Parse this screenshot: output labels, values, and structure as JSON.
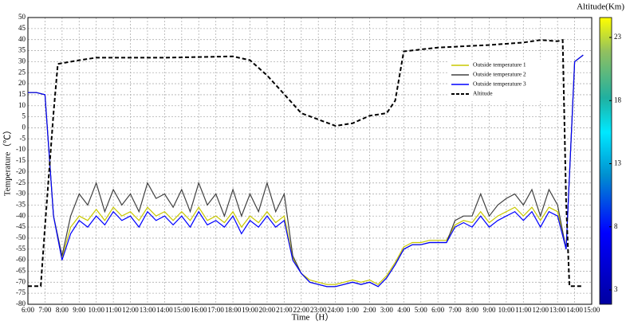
{
  "chart_data": {
    "type": "line",
    "xlabel": "Time（H）",
    "ylabel": "Temperature（℃）",
    "y2label": "Altitude(Km)",
    "x": [
      0,
      0.5,
      1,
      1.5,
      2,
      2.5,
      3,
      3.5,
      4,
      4.5,
      5,
      5.5,
      6,
      6.5,
      7,
      7.5,
      8,
      8.5,
      9,
      9.5,
      10,
      10.5,
      11,
      11.5,
      12,
      12.5,
      13,
      13.5,
      14,
      14.5,
      15,
      15.5,
      16,
      16.5,
      17,
      17.5,
      18,
      18.5,
      19,
      19.5,
      20,
      20.5,
      21,
      21.5,
      22,
      22.5,
      23,
      23.5,
      24,
      24.5,
      25,
      25.5,
      26,
      26.5,
      27,
      27.5,
      28,
      28.5,
      29,
      29.5,
      30,
      30.5,
      31,
      31.5,
      32,
      32.5
    ],
    "xlim": [
      0,
      33
    ],
    "xticks": [
      {
        "value": 0,
        "label": "6:00"
      },
      {
        "value": 1,
        "label": "7:00"
      },
      {
        "value": 2,
        "label": "8:00"
      },
      {
        "value": 3,
        "label": "9:00"
      },
      {
        "value": 4,
        "label": "10:00"
      },
      {
        "value": 5,
        "label": "11:00"
      },
      {
        "value": 6,
        "label": "12:00"
      },
      {
        "value": 7,
        "label": "13:00"
      },
      {
        "value": 8,
        "label": "14:00"
      },
      {
        "value": 9,
        "label": "15:00"
      },
      {
        "value": 10,
        "label": "16:00"
      },
      {
        "value": 11,
        "label": "17:00"
      },
      {
        "value": 12,
        "label": "18:00"
      },
      {
        "value": 13,
        "label": "19:00"
      },
      {
        "value": 14,
        "label": "20:00"
      },
      {
        "value": 15,
        "label": "21:00"
      },
      {
        "value": 16,
        "label": "22:00"
      },
      {
        "value": 17,
        "label": "23:00"
      },
      {
        "value": 18,
        "label": "24:00"
      },
      {
        "value": 19,
        "label": "1:00"
      },
      {
        "value": 20,
        "label": "2:00"
      },
      {
        "value": 21,
        "label": "3:00"
      },
      {
        "value": 22,
        "label": "4:00"
      },
      {
        "value": 23,
        "label": "5:00"
      },
      {
        "value": 24,
        "label": "6:00"
      },
      {
        "value": 25,
        "label": "7:00"
      },
      {
        "value": 26,
        "label": "8:00"
      },
      {
        "value": 27,
        "label": "9:00"
      },
      {
        "value": 28,
        "label": "10:00"
      },
      {
        "value": 29,
        "label": "11:00"
      },
      {
        "value": 30,
        "label": "12:00"
      },
      {
        "value": 31,
        "label": "13:00"
      },
      {
        "value": 32,
        "label": "14:00"
      },
      {
        "value": 33,
        "label": "15:00"
      }
    ],
    "ylim": [
      -80,
      50
    ],
    "yticks": [
      50,
      45,
      40,
      35,
      30,
      25,
      20,
      15,
      10,
      5,
      0,
      -5,
      -10,
      -15,
      -20,
      -25,
      -30,
      -35,
      -40,
      -45,
      -50,
      -55,
      -60,
      -65,
      -70,
      -75,
      -80
    ],
    "y2lim": [
      1.86,
      24.58
    ],
    "y2ticks": [
      3,
      8,
      13,
      18,
      23
    ],
    "grid": true,
    "legend": "upper right",
    "series": [
      {
        "name": "Outside temperature 1",
        "color": "#c8c800",
        "values": [
          16,
          16,
          15,
          -40,
          -59,
          -45,
          -40,
          -42,
          -37,
          -42,
          -36,
          -40,
          -38,
          -42,
          -36,
          -40,
          -38,
          -42,
          -38,
          -42,
          -36,
          -42,
          -40,
          -43,
          -38,
          -45,
          -40,
          -43,
          -38,
          -43,
          -40,
          -59,
          -66,
          -69,
          -70,
          -71,
          -71,
          -70,
          -69,
          -70,
          -69,
          -71,
          -67,
          -61,
          -54,
          -52,
          -52,
          -51,
          -51,
          -51,
          -44,
          -42,
          -43,
          -38,
          -43,
          -40,
          -38,
          -36,
          -40,
          -36,
          -42,
          -36,
          -38,
          -55,
          30,
          33
        ]
      },
      {
        "name": "Outside temperature 2",
        "color": "#404040",
        "values": [
          16,
          16,
          15,
          -40,
          -58,
          -40,
          -30,
          -35,
          -25,
          -38,
          -28,
          -35,
          -30,
          -38,
          -25,
          -32,
          -30,
          -36,
          -28,
          -38,
          -25,
          -35,
          -30,
          -40,
          -28,
          -40,
          -30,
          -38,
          -25,
          -38,
          -30,
          -58,
          -66,
          -70,
          -71,
          -72,
          -72,
          -71,
          -70,
          -71,
          -70,
          -72,
          -68,
          -62,
          -55,
          -53,
          -53,
          -52,
          -52,
          -52,
          -42,
          -40,
          -40,
          -30,
          -40,
          -35,
          -32,
          -30,
          -35,
          -28,
          -40,
          -28,
          -35,
          -55,
          30,
          33
        ]
      },
      {
        "name": "Outside temperature 3",
        "color": "#0000ff",
        "values": [
          16,
          16,
          15,
          -40,
          -60,
          -48,
          -42,
          -45,
          -40,
          -44,
          -38,
          -42,
          -40,
          -45,
          -38,
          -42,
          -40,
          -44,
          -40,
          -45,
          -38,
          -44,
          -42,
          -45,
          -40,
          -48,
          -42,
          -45,
          -40,
          -45,
          -42,
          -60,
          -66,
          -70,
          -71,
          -72,
          -72,
          -71,
          -70,
          -71,
          -70,
          -72,
          -68,
          -62,
          -55,
          -53,
          -53,
          -52,
          -52,
          -52,
          -45,
          -43,
          -45,
          -40,
          -45,
          -42,
          -40,
          -38,
          -42,
          -38,
          -45,
          -38,
          -40,
          -55,
          30,
          33
        ]
      },
      {
        "name": "Altitude",
        "color": "#000000",
        "dashed": true,
        "axis": "y2",
        "x": [
          0,
          0.75,
          1,
          1.5,
          1.75,
          3,
          4,
          8,
          12,
          13,
          14,
          15,
          16,
          17,
          18,
          19,
          20,
          21,
          21.5,
          22,
          24,
          27,
          29,
          30,
          31,
          31.3,
          31.5,
          31.7,
          32.5
        ],
        "values": [
          3.3,
          3.3,
          8,
          17,
          20.9,
          21.2,
          21.4,
          21.4,
          21.5,
          21.2,
          20,
          18.5,
          17,
          16.5,
          16,
          16.2,
          16.8,
          17,
          18,
          21.9,
          22.2,
          22.4,
          22.6,
          22.8,
          22.7,
          22.8,
          10,
          3.3,
          3.3
        ]
      }
    ]
  }
}
